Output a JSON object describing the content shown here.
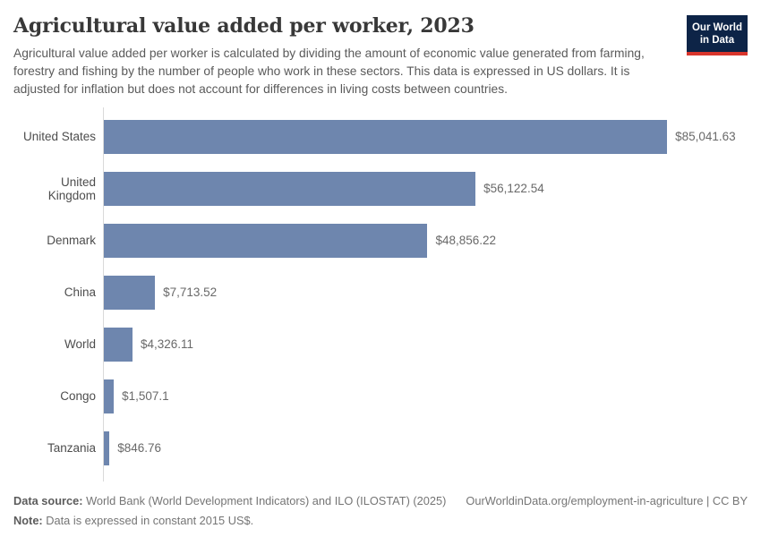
{
  "header": {
    "title": "Agricultural value added per worker, 2023",
    "subtitle": "Agricultural value added per worker is calculated by dividing the amount of economic value generated from farming, forestry and fishing by the number of people who work in these sectors. This data is expressed in US dollars. It is adjusted for inflation but does not account for differences in living costs between countries.",
    "logo": {
      "line1": "Our World",
      "line2": "in Data"
    }
  },
  "chart_data": {
    "type": "bar",
    "orientation": "horizontal",
    "title": "Agricultural value added per worker, 2023",
    "categories": [
      "United States",
      "United Kingdom",
      "Denmark",
      "China",
      "World",
      "Congo",
      "Tanzania"
    ],
    "values": [
      85041.63,
      56122.54,
      48856.22,
      7713.52,
      4326.11,
      1507.1,
      846.76
    ],
    "value_labels": [
      "$85,041.63",
      "$56,122.54",
      "$48,856.22",
      "$7,713.52",
      "$4,326.11",
      "$1,507.1",
      "$846.76"
    ],
    "xlabel": "",
    "ylabel": "",
    "xlim": [
      0,
      85041.63
    ],
    "unit": "constant 2015 US$",
    "grid": false,
    "legend": false,
    "sorted": "descending"
  },
  "footer": {
    "datasource_label": "Data source:",
    "datasource_text": " World Bank (World Development Indicators) and ILO (ILOSTAT) (2025)",
    "link_text": "OurWorldinData.org/employment-in-agriculture | CC BY",
    "note_label": "Note:",
    "note_text": " Data is expressed in constant 2015 US$."
  },
  "colors": {
    "bar": "#6e86ae",
    "axis_line": "#d9d9d9",
    "logo_background": "#0d2447",
    "logo_stripe": "#d8352c",
    "title_text": "#383838",
    "subtitle_text": "#5a5a5a",
    "entity_label_text": "#4d4d4d",
    "value_label_text": "#696969",
    "footer_text": "#757575"
  }
}
